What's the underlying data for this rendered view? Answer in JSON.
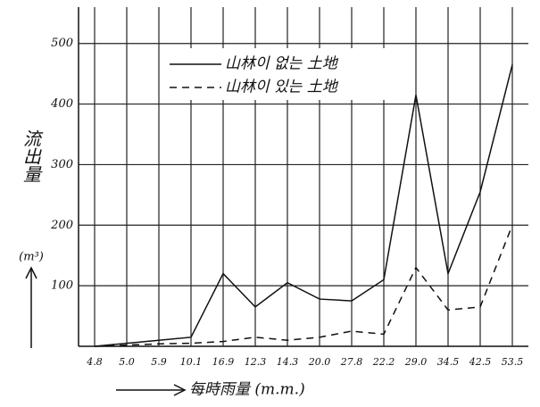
{
  "chart_data": {
    "type": "line",
    "categories": [
      "4.8",
      "5.0",
      "5.9",
      "10.1",
      "16.9",
      "12.3",
      "14.3",
      "20.0",
      "27.8",
      "22.2",
      "29.0",
      "34.5",
      "42.5",
      "53.5"
    ],
    "series": [
      {
        "name": "山林이 없는 土地",
        "color": "#111111",
        "dash": "none",
        "values": [
          0,
          5,
          10,
          15,
          120,
          65,
          105,
          78,
          75,
          110,
          415,
          120,
          255,
          465
        ]
      },
      {
        "name": "山林이 있는 土地",
        "color": "#111111",
        "dash": "8 6",
        "values": [
          0,
          2,
          4,
          5,
          8,
          15,
          10,
          15,
          25,
          20,
          130,
          60,
          65,
          200
        ]
      }
    ],
    "ylim": [
      0,
      560
    ],
    "yticks": [
      100,
      200,
      300,
      400,
      500
    ],
    "grid": true,
    "ylabel": "流出量",
    "yunit": "(m³)",
    "xlabel": "每時雨量 (m.m.)",
    "legend": "top-center"
  }
}
